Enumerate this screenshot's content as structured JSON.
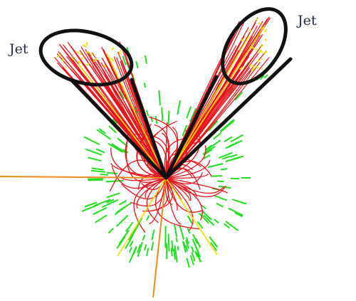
{
  "labels": {
    "left_jet": "Jet",
    "right_jet": "Jet"
  },
  "colors": {
    "charged_track": "#e8141c",
    "energy_deposit": "#22dd22",
    "high_pt_track": "#f2e000",
    "muon_track": "#ee8a1a",
    "jet_cone_outline": "#111111"
  }
}
